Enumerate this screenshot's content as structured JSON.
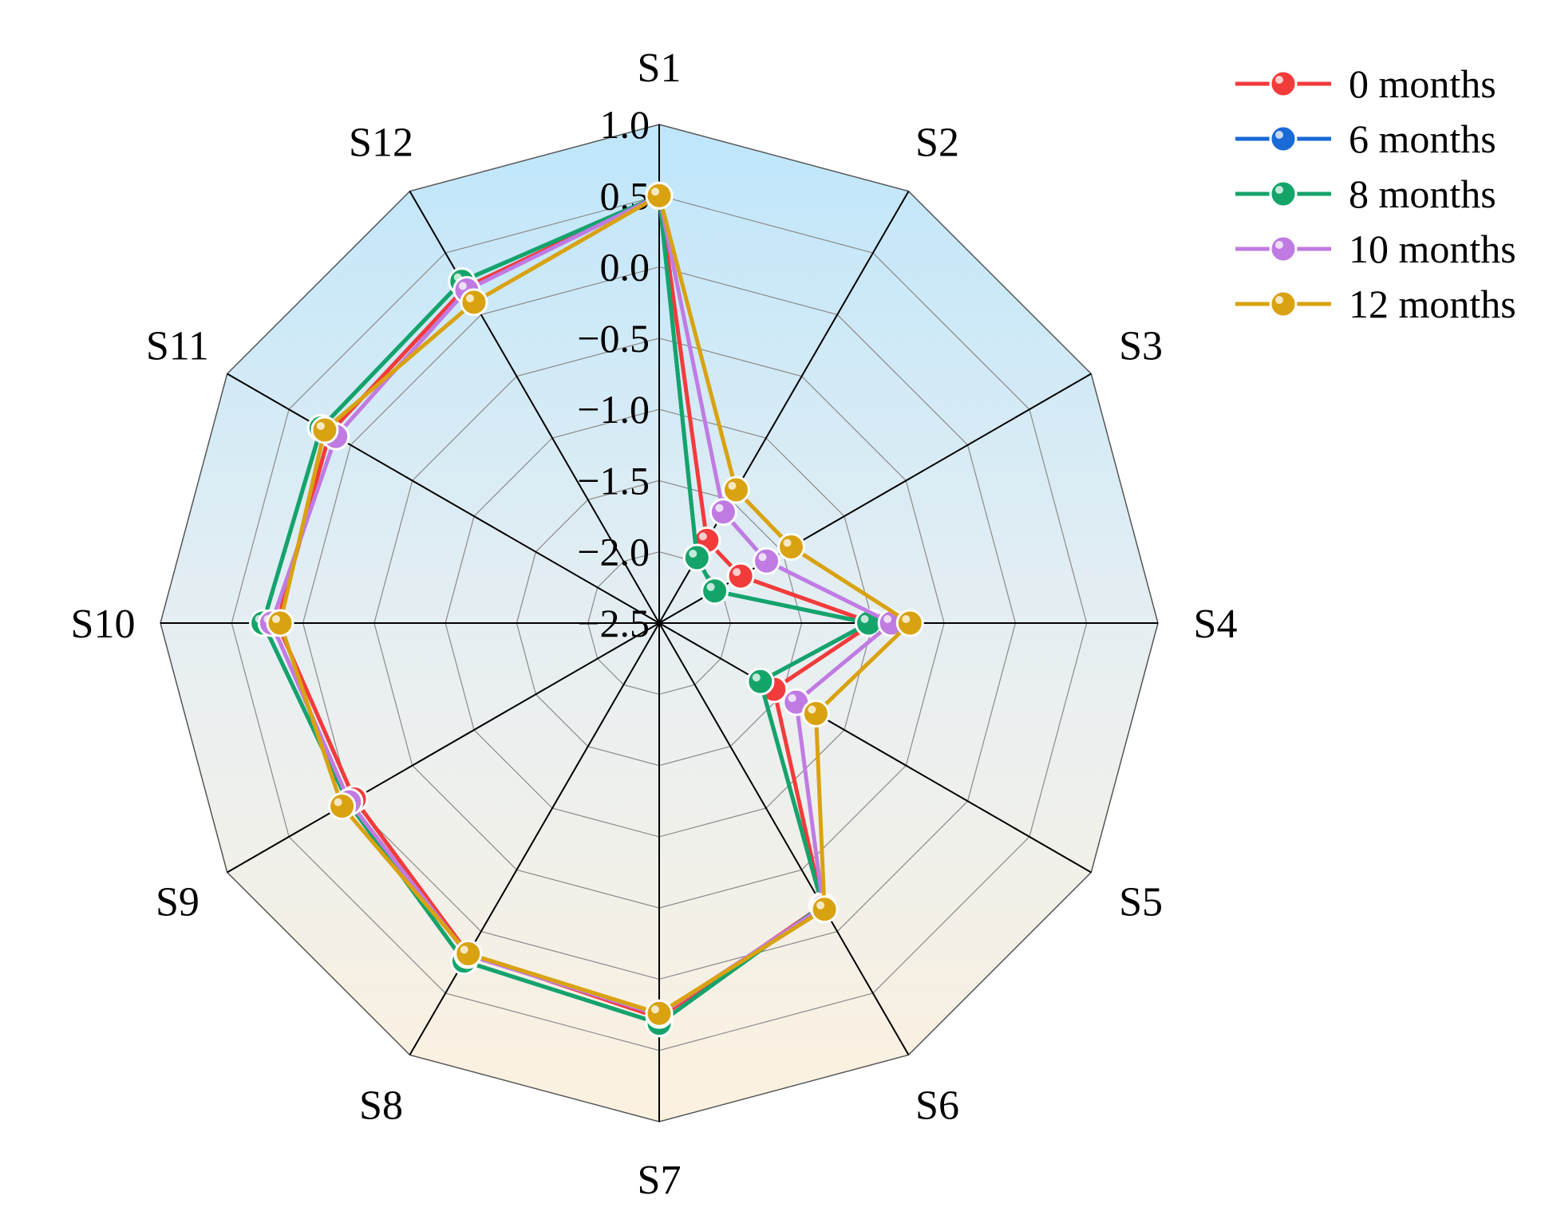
{
  "chart_data": {
    "type": "radar",
    "title": "",
    "axes": [
      "S1",
      "S2",
      "S3",
      "S4",
      "S5",
      "S6",
      "S7",
      "S8",
      "S9",
      "S10",
      "S11",
      "S12"
    ],
    "rlim": [
      -2.5,
      1.0
    ],
    "ticks": [
      "1.0",
      "0.5",
      "0.0",
      "−0.5",
      "−1.0",
      "−1.5",
      "−2.0",
      "−2.5"
    ],
    "grid": true,
    "legend_position": "top-right",
    "series": [
      {
        "name": "0 months",
        "color": "#f23b3b",
        "values": [
          0.5,
          -1.83,
          -1.84,
          -1.0,
          -1.57,
          -0.21,
          0.27,
          0.18,
          -0.03,
          0.18,
          0.17,
          0.22
        ]
      },
      {
        "name": "6 months",
        "color": "#1a6ad6",
        "values": [
          0.5,
          -1.97,
          -2.05,
          -1.03,
          -1.68,
          -0.21,
          0.31,
          0.24,
          0.02,
          0.28,
          0.24,
          0.27
        ]
      },
      {
        "name": "8 months",
        "color": "#14a46a",
        "values": [
          0.5,
          -1.97,
          -2.05,
          -1.03,
          -1.68,
          -0.21,
          0.31,
          0.24,
          0.02,
          0.28,
          0.24,
          0.27
        ]
      },
      {
        "name": "10 months",
        "color": "#c07be3",
        "values": [
          0.5,
          -1.6,
          -1.63,
          -0.87,
          -1.39,
          -0.2,
          0.25,
          0.19,
          0.01,
          0.22,
          0.12,
          0.2
        ]
      },
      {
        "name": "12 months",
        "color": "#d9a210",
        "values": [
          0.5,
          -1.42,
          -1.43,
          -0.74,
          -1.23,
          -0.18,
          0.24,
          0.18,
          0.07,
          0.16,
          0.21,
          0.1
        ]
      }
    ]
  },
  "legend": {
    "items": [
      "0 months",
      "6 months",
      "8 months",
      "10 months",
      "12 months"
    ]
  }
}
